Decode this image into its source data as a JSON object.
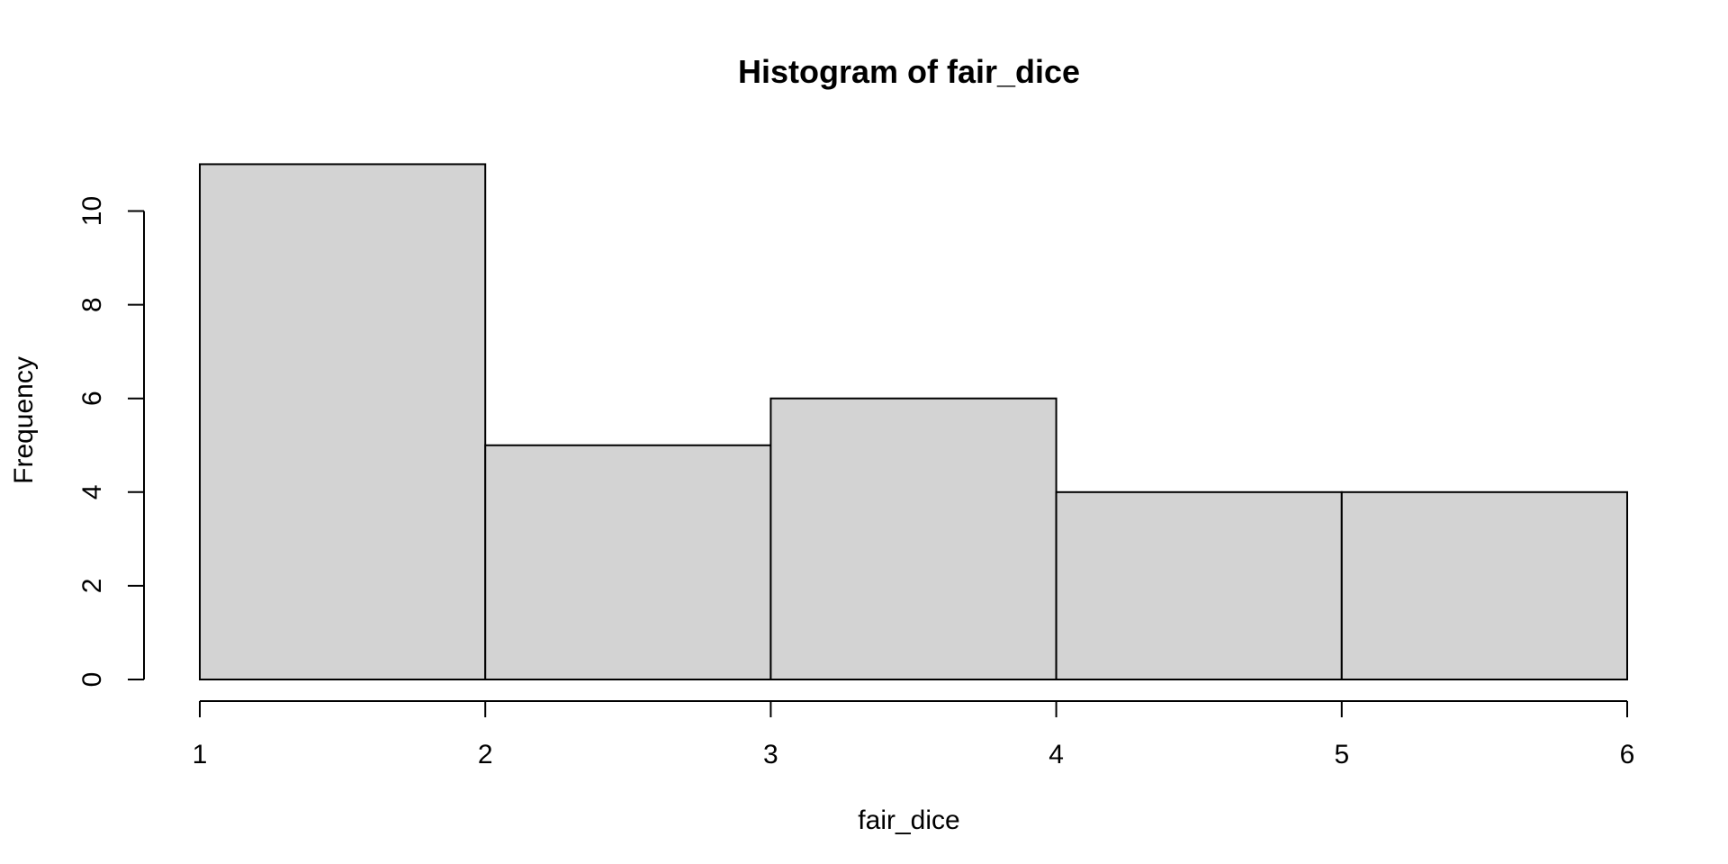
{
  "chart_data": {
    "type": "bar",
    "subtype": "histogram",
    "title": "Histogram of fair_dice",
    "xlabel": "fair_dice",
    "ylabel": "Frequency",
    "bins": [
      {
        "start": 1,
        "end": 2,
        "count": 11
      },
      {
        "start": 2,
        "end": 3,
        "count": 5
      },
      {
        "start": 3,
        "end": 4,
        "count": 6
      },
      {
        "start": 4,
        "end": 5,
        "count": 4
      },
      {
        "start": 5,
        "end": 6,
        "count": 4
      }
    ],
    "x_ticks": [
      "1",
      "2",
      "3",
      "4",
      "5",
      "6"
    ],
    "y_ticks": [
      "0",
      "2",
      "4",
      "6",
      "8",
      "10"
    ],
    "xlim": [
      1,
      6
    ],
    "ylim": [
      0,
      11
    ],
    "grid": false,
    "bar_fill": "#d3d3d3",
    "bar_stroke": "#000000"
  }
}
